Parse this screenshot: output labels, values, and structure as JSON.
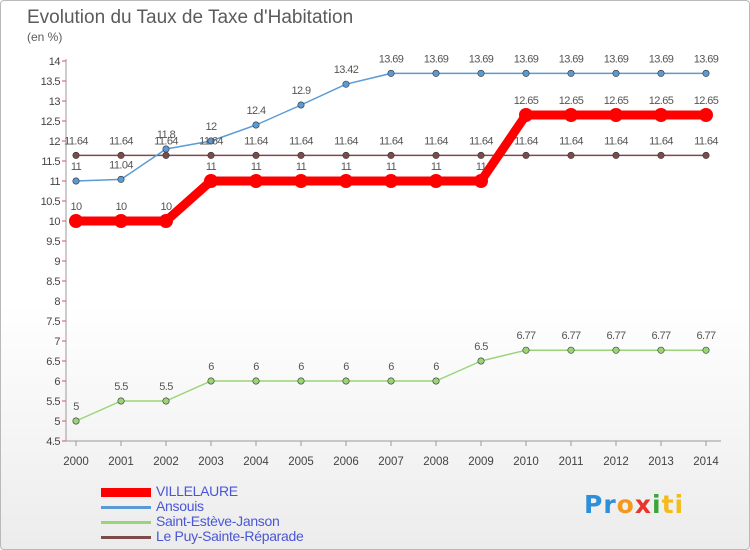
{
  "title": "Evolution du Taux de Taxe d'Habitation",
  "subtitle": "(en %)",
  "logo": {
    "parts": [
      {
        "text": "Pr",
        "color": "#2e8fd8"
      },
      {
        "text": "o",
        "color": "#f39a1e"
      },
      {
        "text": "x",
        "color": "#e8342c"
      },
      {
        "text": "i",
        "color": "#3aa63a"
      },
      {
        "text": "ti",
        "color": "#f2bd1c"
      }
    ]
  },
  "chart_data": {
    "type": "line",
    "title": "Evolution du Taux de Taxe d'Habitation",
    "ylabel": "(en %)",
    "xlabel": "",
    "x": [
      "2000",
      "2001",
      "2002",
      "2003",
      "2004",
      "2005",
      "2006",
      "2007",
      "2008",
      "2009",
      "2010",
      "2011",
      "2012",
      "2013",
      "2014"
    ],
    "ylim": [
      4.5,
      14
    ],
    "yticks": [
      "4.5",
      "5",
      "5.5",
      "6",
      "6.5",
      "7",
      "7.5",
      "8",
      "8.5",
      "9",
      "9.5",
      "10",
      "10.5",
      "11",
      "11.5",
      "12",
      "12.5",
      "13",
      "13.5",
      "14"
    ],
    "grid": false,
    "legend_position": "bottom-left",
    "series": [
      {
        "name": "VILLELAURE",
        "color": "#ff0000",
        "emphasis": true,
        "values": [
          10,
          10,
          10,
          11,
          11,
          11,
          11,
          11,
          11,
          11,
          12.65,
          12.65,
          12.65,
          12.65,
          12.65
        ],
        "labels": [
          "10",
          "10",
          "10",
          "11",
          "11",
          "11",
          "11",
          "11",
          "11",
          "11",
          "12.65",
          "12.65",
          "12.65",
          "12.65",
          "12.65"
        ]
      },
      {
        "name": "Ansouis",
        "color": "#5b9bd5",
        "values": [
          11,
          11.04,
          11.8,
          12,
          12.4,
          12.9,
          13.42,
          13.69,
          13.69,
          13.69,
          13.69,
          13.69,
          13.69,
          13.69,
          13.69
        ],
        "labels": [
          "11",
          "11.04",
          "11.8",
          "12",
          "12.4",
          "12.9",
          "13.42",
          "13.69",
          "13.69",
          "13.69",
          "13.69",
          "13.69",
          "13.69",
          "13.69",
          "13.69"
        ]
      },
      {
        "name": "Saint-Estève-Janson",
        "color": "#99d477",
        "values": [
          5,
          5.5,
          5.5,
          6,
          6,
          6,
          6,
          6,
          6,
          6.5,
          6.77,
          6.77,
          6.77,
          6.77,
          6.77
        ],
        "labels": [
          "5",
          "5.5",
          "5.5",
          "6",
          "6",
          "6",
          "6",
          "6",
          "6",
          "6.5",
          "6.77",
          "6.77",
          "6.77",
          "6.77",
          "6.77"
        ]
      },
      {
        "name": "Le Puy-Sainte-Réparade",
        "color": "#7f4a4a",
        "values": [
          11.64,
          11.64,
          11.64,
          11.64,
          11.64,
          11.64,
          11.64,
          11.64,
          11.64,
          11.64,
          11.64,
          11.64,
          11.64,
          11.64,
          11.64
        ],
        "labels": [
          "11.64",
          "11.64",
          "11.64",
          "11.64",
          "11.64",
          "11.64",
          "11.64",
          "11.64",
          "11.64",
          "11.64",
          "11.64",
          "11.64",
          "11.64",
          "11.64",
          "11.64"
        ]
      }
    ]
  }
}
